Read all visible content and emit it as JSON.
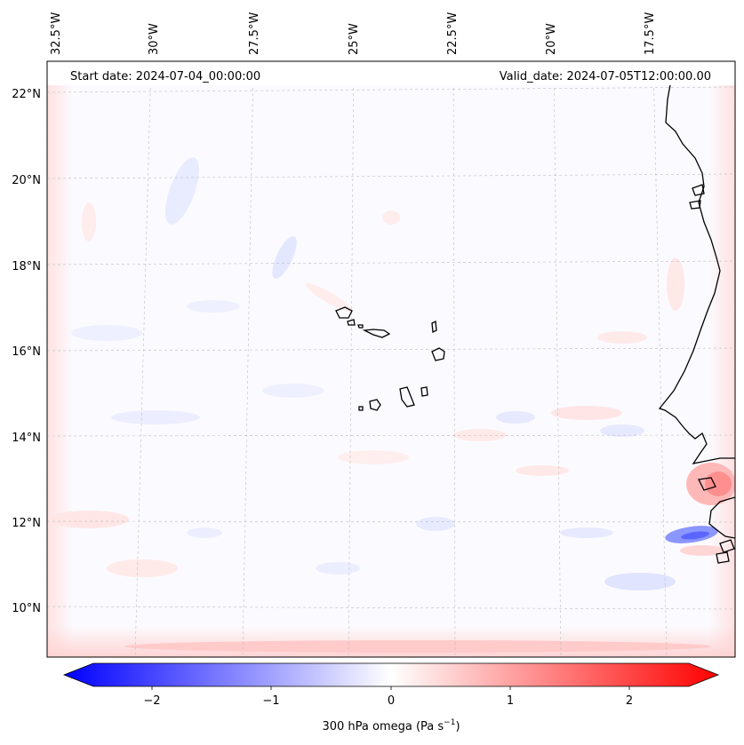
{
  "map": {
    "start_date": "Start date: 2024-07-04_00:00:00",
    "valid_date": "Valid_date: 2024-07-05T12:00:00.00",
    "lon_labels": [
      "32.5°W",
      "30°W",
      "27.5°W",
      "25°W",
      "22.5°W",
      "20°W",
      "17.5°W"
    ],
    "lat_labels": [
      "22°N",
      "20°N",
      "18°N",
      "16°N",
      "14°N",
      "12°N",
      "10°N"
    ]
  },
  "colorbar": {
    "ticks": [
      "−2",
      "−1",
      "0",
      "1",
      "2"
    ],
    "label_main": "300 hPa omega (Pa s",
    "label_sup": "−1",
    "label_end": ")",
    "colors": {
      "neg": "#0000ff",
      "mid": "#ffffff",
      "pos": "#ff0000"
    }
  }
}
